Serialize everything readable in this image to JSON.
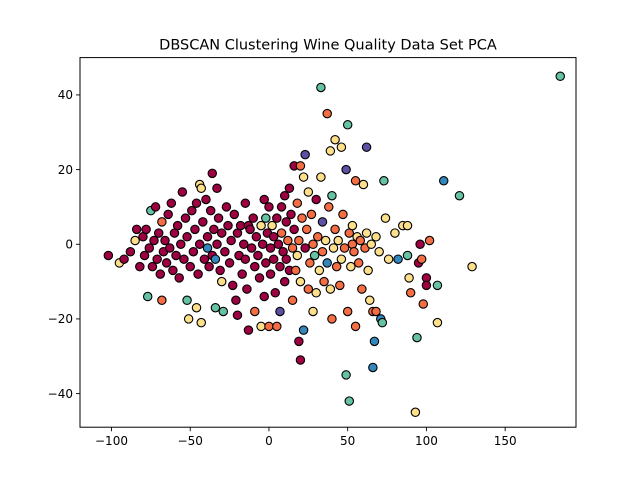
{
  "chart_data": {
    "type": "scatter",
    "title": "DBSCAN Clustering Wine Quality Data Set PCA",
    "xlabel": "",
    "ylabel": "",
    "xlim": [
      -120,
      195
    ],
    "ylim": [
      -49,
      50
    ],
    "xticks": [
      -100,
      -50,
      0,
      50,
      100,
      150
    ],
    "yticks": [
      -40,
      -20,
      0,
      20,
      40
    ],
    "grid": false,
    "legend": "none",
    "colors": {
      "crimson": "#9e0142",
      "orange": "#f46d43",
      "yellow": "#fee08b",
      "green": "#66c2a5",
      "teal": "#3288bd",
      "blue": "#5e4fa2",
      "edge": "#000000"
    },
    "points": [
      {
        "x": -102,
        "y": -3,
        "c": "crimson"
      },
      {
        "x": -95,
        "y": -5,
        "c": "yellow"
      },
      {
        "x": -92,
        "y": -4,
        "c": "crimson"
      },
      {
        "x": -88,
        "y": -2,
        "c": "crimson"
      },
      {
        "x": -85,
        "y": 1,
        "c": "yellow"
      },
      {
        "x": -84,
        "y": 4,
        "c": "crimson"
      },
      {
        "x": -82,
        "y": -6,
        "c": "crimson"
      },
      {
        "x": -80,
        "y": 2,
        "c": "crimson"
      },
      {
        "x": -79,
        "y": -3,
        "c": "crimson"
      },
      {
        "x": -78,
        "y": 4,
        "c": "crimson"
      },
      {
        "x": -77,
        "y": -14,
        "c": "green"
      },
      {
        "x": -76,
        "y": -1,
        "c": "crimson"
      },
      {
        "x": -75,
        "y": 9,
        "c": "green"
      },
      {
        "x": -74,
        "y": -6,
        "c": "crimson"
      },
      {
        "x": -73,
        "y": 1,
        "c": "crimson"
      },
      {
        "x": -72,
        "y": 10,
        "c": "crimson"
      },
      {
        "x": -71,
        "y": -4,
        "c": "crimson"
      },
      {
        "x": -70,
        "y": 3,
        "c": "crimson"
      },
      {
        "x": -69,
        "y": -8,
        "c": "crimson"
      },
      {
        "x": -68,
        "y": 6,
        "c": "orange"
      },
      {
        "x": -68,
        "y": -15,
        "c": "orange"
      },
      {
        "x": -67,
        "y": -2,
        "c": "crimson"
      },
      {
        "x": -66,
        "y": 1,
        "c": "crimson"
      },
      {
        "x": -65,
        "y": -5,
        "c": "crimson"
      },
      {
        "x": -64,
        "y": 8,
        "c": "crimson"
      },
      {
        "x": -63,
        "y": -1,
        "c": "crimson"
      },
      {
        "x": -62,
        "y": 11,
        "c": "crimson"
      },
      {
        "x": -61,
        "y": -7,
        "c": "crimson"
      },
      {
        "x": -60,
        "y": 3,
        "c": "crimson"
      },
      {
        "x": -59,
        "y": -3,
        "c": "crimson"
      },
      {
        "x": -58,
        "y": 5,
        "c": "crimson"
      },
      {
        "x": -57,
        "y": -9,
        "c": "crimson"
      },
      {
        "x": -56,
        "y": 0,
        "c": "crimson"
      },
      {
        "x": -55,
        "y": 14,
        "c": "crimson"
      },
      {
        "x": -54,
        "y": -4,
        "c": "crimson"
      },
      {
        "x": -53,
        "y": 7,
        "c": "crimson"
      },
      {
        "x": -52,
        "y": -15,
        "c": "green"
      },
      {
        "x": -52,
        "y": 2,
        "c": "crimson"
      },
      {
        "x": -51,
        "y": -20,
        "c": "yellow"
      },
      {
        "x": -50,
        "y": -6,
        "c": "crimson"
      },
      {
        "x": -49,
        "y": 9,
        "c": "crimson"
      },
      {
        "x": -48,
        "y": -2,
        "c": "crimson"
      },
      {
        "x": -47,
        "y": 4,
        "c": "crimson"
      },
      {
        "x": -46,
        "y": -17,
        "c": "yellow"
      },
      {
        "x": -46,
        "y": 11,
        "c": "crimson"
      },
      {
        "x": -45,
        "y": -8,
        "c": "crimson"
      },
      {
        "x": -44,
        "y": 16,
        "c": "yellow"
      },
      {
        "x": -44,
        "y": 0,
        "c": "crimson"
      },
      {
        "x": -43,
        "y": -21,
        "c": "yellow"
      },
      {
        "x": -43,
        "y": 15,
        "c": "yellow"
      },
      {
        "x": -42,
        "y": 6,
        "c": "crimson"
      },
      {
        "x": -41,
        "y": -4,
        "c": "crimson"
      },
      {
        "x": -40,
        "y": 12,
        "c": "crimson"
      },
      {
        "x": -39,
        "y": -1,
        "c": "teal"
      },
      {
        "x": -39,
        "y": 2,
        "c": "crimson"
      },
      {
        "x": -38,
        "y": -6,
        "c": "crimson"
      },
      {
        "x": -37,
        "y": 9,
        "c": "crimson"
      },
      {
        "x": -36,
        "y": 19,
        "c": "crimson"
      },
      {
        "x": -36,
        "y": -3,
        "c": "crimson"
      },
      {
        "x": -35,
        "y": 4,
        "c": "crimson"
      },
      {
        "x": -34,
        "y": -4,
        "c": "teal"
      },
      {
        "x": -34,
        "y": -17,
        "c": "green"
      },
      {
        "x": -33,
        "y": 0,
        "c": "crimson"
      },
      {
        "x": -33,
        "y": 15,
        "c": "crimson"
      },
      {
        "x": -32,
        "y": 7,
        "c": "crimson"
      },
      {
        "x": -31,
        "y": -7,
        "c": "crimson"
      },
      {
        "x": -30,
        "y": -10,
        "c": "yellow"
      },
      {
        "x": -30,
        "y": 3,
        "c": "crimson"
      },
      {
        "x": -29,
        "y": -18,
        "c": "green"
      },
      {
        "x": -28,
        "y": -2,
        "c": "crimson"
      },
      {
        "x": -27,
        "y": 10,
        "c": "crimson"
      },
      {
        "x": -26,
        "y": 5,
        "c": "crimson"
      },
      {
        "x": -25,
        "y": -5,
        "c": "crimson"
      },
      {
        "x": -24,
        "y": 1,
        "c": "crimson"
      },
      {
        "x": -23,
        "y": -11,
        "c": "crimson"
      },
      {
        "x": -22,
        "y": 8,
        "c": "crimson"
      },
      {
        "x": -21,
        "y": -15,
        "c": "crimson"
      },
      {
        "x": -20,
        "y": 3,
        "c": "crimson"
      },
      {
        "x": -20,
        "y": -19,
        "c": "crimson"
      },
      {
        "x": -19,
        "y": -3,
        "c": "crimson"
      },
      {
        "x": -18,
        "y": 5,
        "c": "crimson"
      },
      {
        "x": -17,
        "y": -8,
        "c": "crimson"
      },
      {
        "x": -16,
        "y": 0,
        "c": "crimson"
      },
      {
        "x": -15,
        "y": -4,
        "c": "crimson"
      },
      {
        "x": -15,
        "y": 11,
        "c": "crimson"
      },
      {
        "x": -14,
        "y": -12,
        "c": "crimson"
      },
      {
        "x": -13,
        "y": -23,
        "c": "crimson"
      },
      {
        "x": -13,
        "y": 5,
        "c": "crimson"
      },
      {
        "x": -12,
        "y": 4,
        "c": "crimson"
      },
      {
        "x": -11,
        "y": -1,
        "c": "crimson"
      },
      {
        "x": -10,
        "y": 7,
        "c": "crimson"
      },
      {
        "x": -9,
        "y": -6,
        "c": "crimson"
      },
      {
        "x": -9,
        "y": -18,
        "c": "orange"
      },
      {
        "x": -8,
        "y": 2,
        "c": "crimson"
      },
      {
        "x": -7,
        "y": -3,
        "c": "crimson"
      },
      {
        "x": -6,
        "y": -9,
        "c": "crimson"
      },
      {
        "x": -5,
        "y": -22,
        "c": "yellow"
      },
      {
        "x": -5,
        "y": 5,
        "c": "yellow"
      },
      {
        "x": -4,
        "y": 0,
        "c": "crimson"
      },
      {
        "x": -3,
        "y": 12,
        "c": "crimson"
      },
      {
        "x": -3,
        "y": -14,
        "c": "crimson"
      },
      {
        "x": -2,
        "y": 7,
        "c": "green"
      },
      {
        "x": -2,
        "y": -5,
        "c": "crimson"
      },
      {
        "x": -1,
        "y": 3,
        "c": "crimson"
      },
      {
        "x": 0,
        "y": -22,
        "c": "orange"
      },
      {
        "x": 0,
        "y": 10,
        "c": "crimson"
      },
      {
        "x": 1,
        "y": -1,
        "c": "crimson"
      },
      {
        "x": 1,
        "y": -8,
        "c": "crimson"
      },
      {
        "x": 2,
        "y": 5,
        "c": "yellow"
      },
      {
        "x": 3,
        "y": -4,
        "c": "crimson"
      },
      {
        "x": 3,
        "y": 2,
        "c": "crimson"
      },
      {
        "x": 4,
        "y": -13,
        "c": "crimson"
      },
      {
        "x": 5,
        "y": 7,
        "c": "crimson"
      },
      {
        "x": 5,
        "y": -22,
        "c": "orange"
      },
      {
        "x": 6,
        "y": 0,
        "c": "crimson"
      },
      {
        "x": 7,
        "y": -6,
        "c": "crimson"
      },
      {
        "x": 7,
        "y": -18,
        "c": "blue"
      },
      {
        "x": 8,
        "y": 3,
        "c": "orange"
      },
      {
        "x": 8,
        "y": 10,
        "c": "crimson"
      },
      {
        "x": 9,
        "y": -2,
        "c": "crimson"
      },
      {
        "x": 10,
        "y": 13,
        "c": "crimson"
      },
      {
        "x": 10,
        "y": -10,
        "c": "crimson"
      },
      {
        "x": 11,
        "y": 6,
        "c": "crimson"
      },
      {
        "x": 11,
        "y": -4,
        "c": "crimson"
      },
      {
        "x": 12,
        "y": 1,
        "c": "orange"
      },
      {
        "x": 13,
        "y": 15,
        "c": "crimson"
      },
      {
        "x": 13,
        "y": -7,
        "c": "crimson"
      },
      {
        "x": 14,
        "y": 8,
        "c": "crimson"
      },
      {
        "x": 15,
        "y": -1,
        "c": "orange"
      },
      {
        "x": 15,
        "y": -15,
        "c": "orange"
      },
      {
        "x": 16,
        "y": 4,
        "c": "crimson"
      },
      {
        "x": 16,
        "y": 21,
        "c": "crimson"
      },
      {
        "x": 17,
        "y": -7,
        "c": "orange"
      },
      {
        "x": 18,
        "y": -3,
        "c": "yellow"
      },
      {
        "x": 18,
        "y": 11,
        "c": "orange"
      },
      {
        "x": 19,
        "y": -26,
        "c": "crimson"
      },
      {
        "x": 19,
        "y": 1,
        "c": "orange"
      },
      {
        "x": 20,
        "y": -31,
        "c": "crimson"
      },
      {
        "x": 20,
        "y": 21,
        "c": "orange"
      },
      {
        "x": 20,
        "y": -10,
        "c": "yellow"
      },
      {
        "x": 21,
        "y": 7,
        "c": "orange"
      },
      {
        "x": 22,
        "y": -23,
        "c": "teal"
      },
      {
        "x": 22,
        "y": 18,
        "c": "yellow"
      },
      {
        "x": 23,
        "y": -1,
        "c": "crimson"
      },
      {
        "x": 23,
        "y": 24,
        "c": "blue"
      },
      {
        "x": 24,
        "y": 4,
        "c": "orange"
      },
      {
        "x": 25,
        "y": -12,
        "c": "orange"
      },
      {
        "x": 25,
        "y": 14,
        "c": "yellow"
      },
      {
        "x": 26,
        "y": -5,
        "c": "orange"
      },
      {
        "x": 27,
        "y": 8,
        "c": "orange"
      },
      {
        "x": 28,
        "y": -18,
        "c": "yellow"
      },
      {
        "x": 28,
        "y": 0,
        "c": "orange"
      },
      {
        "x": 29,
        "y": -3,
        "c": "green"
      },
      {
        "x": 30,
        "y": 12,
        "c": "crimson"
      },
      {
        "x": 30,
        "y": -13,
        "c": "yellow"
      },
      {
        "x": 31,
        "y": 2,
        "c": "orange"
      },
      {
        "x": 32,
        "y": -7,
        "c": "yellow"
      },
      {
        "x": 33,
        "y": 18,
        "c": "yellow"
      },
      {
        "x": 33,
        "y": 42,
        "c": "green"
      },
      {
        "x": 34,
        "y": -2,
        "c": "orange"
      },
      {
        "x": 34,
        "y": 6,
        "c": "blue"
      },
      {
        "x": 35,
        "y": -10,
        "c": "orange"
      },
      {
        "x": 36,
        "y": 1,
        "c": "yellow"
      },
      {
        "x": 37,
        "y": -5,
        "c": "teal"
      },
      {
        "x": 37,
        "y": 35,
        "c": "orange"
      },
      {
        "x": 38,
        "y": 10,
        "c": "orange"
      },
      {
        "x": 39,
        "y": -12,
        "c": "yellow"
      },
      {
        "x": 39,
        "y": 25,
        "c": "yellow"
      },
      {
        "x": 40,
        "y": -20,
        "c": "orange"
      },
      {
        "x": 40,
        "y": 13,
        "c": "green"
      },
      {
        "x": 41,
        "y": -1,
        "c": "yellow"
      },
      {
        "x": 42,
        "y": 4,
        "c": "orange"
      },
      {
        "x": 42,
        "y": 28,
        "c": "yellow"
      },
      {
        "x": 43,
        "y": -6,
        "c": "orange"
      },
      {
        "x": 44,
        "y": 1,
        "c": "yellow"
      },
      {
        "x": 45,
        "y": -11,
        "c": "orange"
      },
      {
        "x": 46,
        "y": 26,
        "c": "yellow"
      },
      {
        "x": 46,
        "y": -4,
        "c": "yellow"
      },
      {
        "x": 47,
        "y": 8,
        "c": "orange"
      },
      {
        "x": 48,
        "y": -1,
        "c": "orange"
      },
      {
        "x": 49,
        "y": -35,
        "c": "green"
      },
      {
        "x": 49,
        "y": 20,
        "c": "blue"
      },
      {
        "x": 50,
        "y": 32,
        "c": "green"
      },
      {
        "x": 50,
        "y": -18,
        "c": "orange"
      },
      {
        "x": 51,
        "y": 3,
        "c": "orange"
      },
      {
        "x": 51,
        "y": -42,
        "c": "green"
      },
      {
        "x": 52,
        "y": -6,
        "c": "yellow"
      },
      {
        "x": 53,
        "y": 0,
        "c": "orange"
      },
      {
        "x": 53,
        "y": 5,
        "c": "yellow"
      },
      {
        "x": 54,
        "y": -2,
        "c": "orange"
      },
      {
        "x": 55,
        "y": 17,
        "c": "orange"
      },
      {
        "x": 55,
        "y": -22,
        "c": "orange"
      },
      {
        "x": 56,
        "y": 2,
        "c": "yellow"
      },
      {
        "x": 57,
        "y": -5,
        "c": "orange"
      },
      {
        "x": 58,
        "y": 1,
        "c": "orange"
      },
      {
        "x": 59,
        "y": -12,
        "c": "orange"
      },
      {
        "x": 60,
        "y": 16,
        "c": "yellow"
      },
      {
        "x": 61,
        "y": -1,
        "c": "orange"
      },
      {
        "x": 62,
        "y": 26,
        "c": "blue"
      },
      {
        "x": 62,
        "y": 3,
        "c": "yellow"
      },
      {
        "x": 63,
        "y": -7,
        "c": "yellow"
      },
      {
        "x": 64,
        "y": -15,
        "c": "yellow"
      },
      {
        "x": 65,
        "y": 0,
        "c": "yellow"
      },
      {
        "x": 66,
        "y": -33,
        "c": "teal"
      },
      {
        "x": 66,
        "y": -18,
        "c": "orange"
      },
      {
        "x": 67,
        "y": -26,
        "c": "teal"
      },
      {
        "x": 68,
        "y": 2,
        "c": "yellow"
      },
      {
        "x": 68,
        "y": -18,
        "c": "orange"
      },
      {
        "x": 70,
        "y": -2,
        "c": "yellow"
      },
      {
        "x": 71,
        "y": -20,
        "c": "teal"
      },
      {
        "x": 72,
        "y": -21,
        "c": "green"
      },
      {
        "x": 73,
        "y": 17,
        "c": "green"
      },
      {
        "x": 74,
        "y": 7,
        "c": "yellow"
      },
      {
        "x": 76,
        "y": -4,
        "c": "yellow"
      },
      {
        "x": 80,
        "y": 3,
        "c": "yellow"
      },
      {
        "x": 82,
        "y": -4,
        "c": "teal"
      },
      {
        "x": 85,
        "y": 5,
        "c": "yellow"
      },
      {
        "x": 88,
        "y": 5,
        "c": "yellow"
      },
      {
        "x": 88,
        "y": -3,
        "c": "green"
      },
      {
        "x": 89,
        "y": -9,
        "c": "yellow"
      },
      {
        "x": 90,
        "y": -13,
        "c": "orange"
      },
      {
        "x": 93,
        "y": -45,
        "c": "yellow"
      },
      {
        "x": 94,
        "y": -25,
        "c": "green"
      },
      {
        "x": 95,
        "y": -5,
        "c": "crimson"
      },
      {
        "x": 96,
        "y": 0,
        "c": "crimson"
      },
      {
        "x": 97,
        "y": -4,
        "c": "orange"
      },
      {
        "x": 98,
        "y": -16,
        "c": "orange"
      },
      {
        "x": 100,
        "y": -9,
        "c": "crimson"
      },
      {
        "x": 100,
        "y": -11,
        "c": "crimson"
      },
      {
        "x": 102,
        "y": 1,
        "c": "orange"
      },
      {
        "x": 107,
        "y": -21,
        "c": "yellow"
      },
      {
        "x": 107,
        "y": -11,
        "c": "green"
      },
      {
        "x": 111,
        "y": 17,
        "c": "teal"
      },
      {
        "x": 121,
        "y": 13,
        "c": "green"
      },
      {
        "x": 129,
        "y": -6,
        "c": "yellow"
      },
      {
        "x": 185,
        "y": 45,
        "c": "green"
      }
    ]
  }
}
